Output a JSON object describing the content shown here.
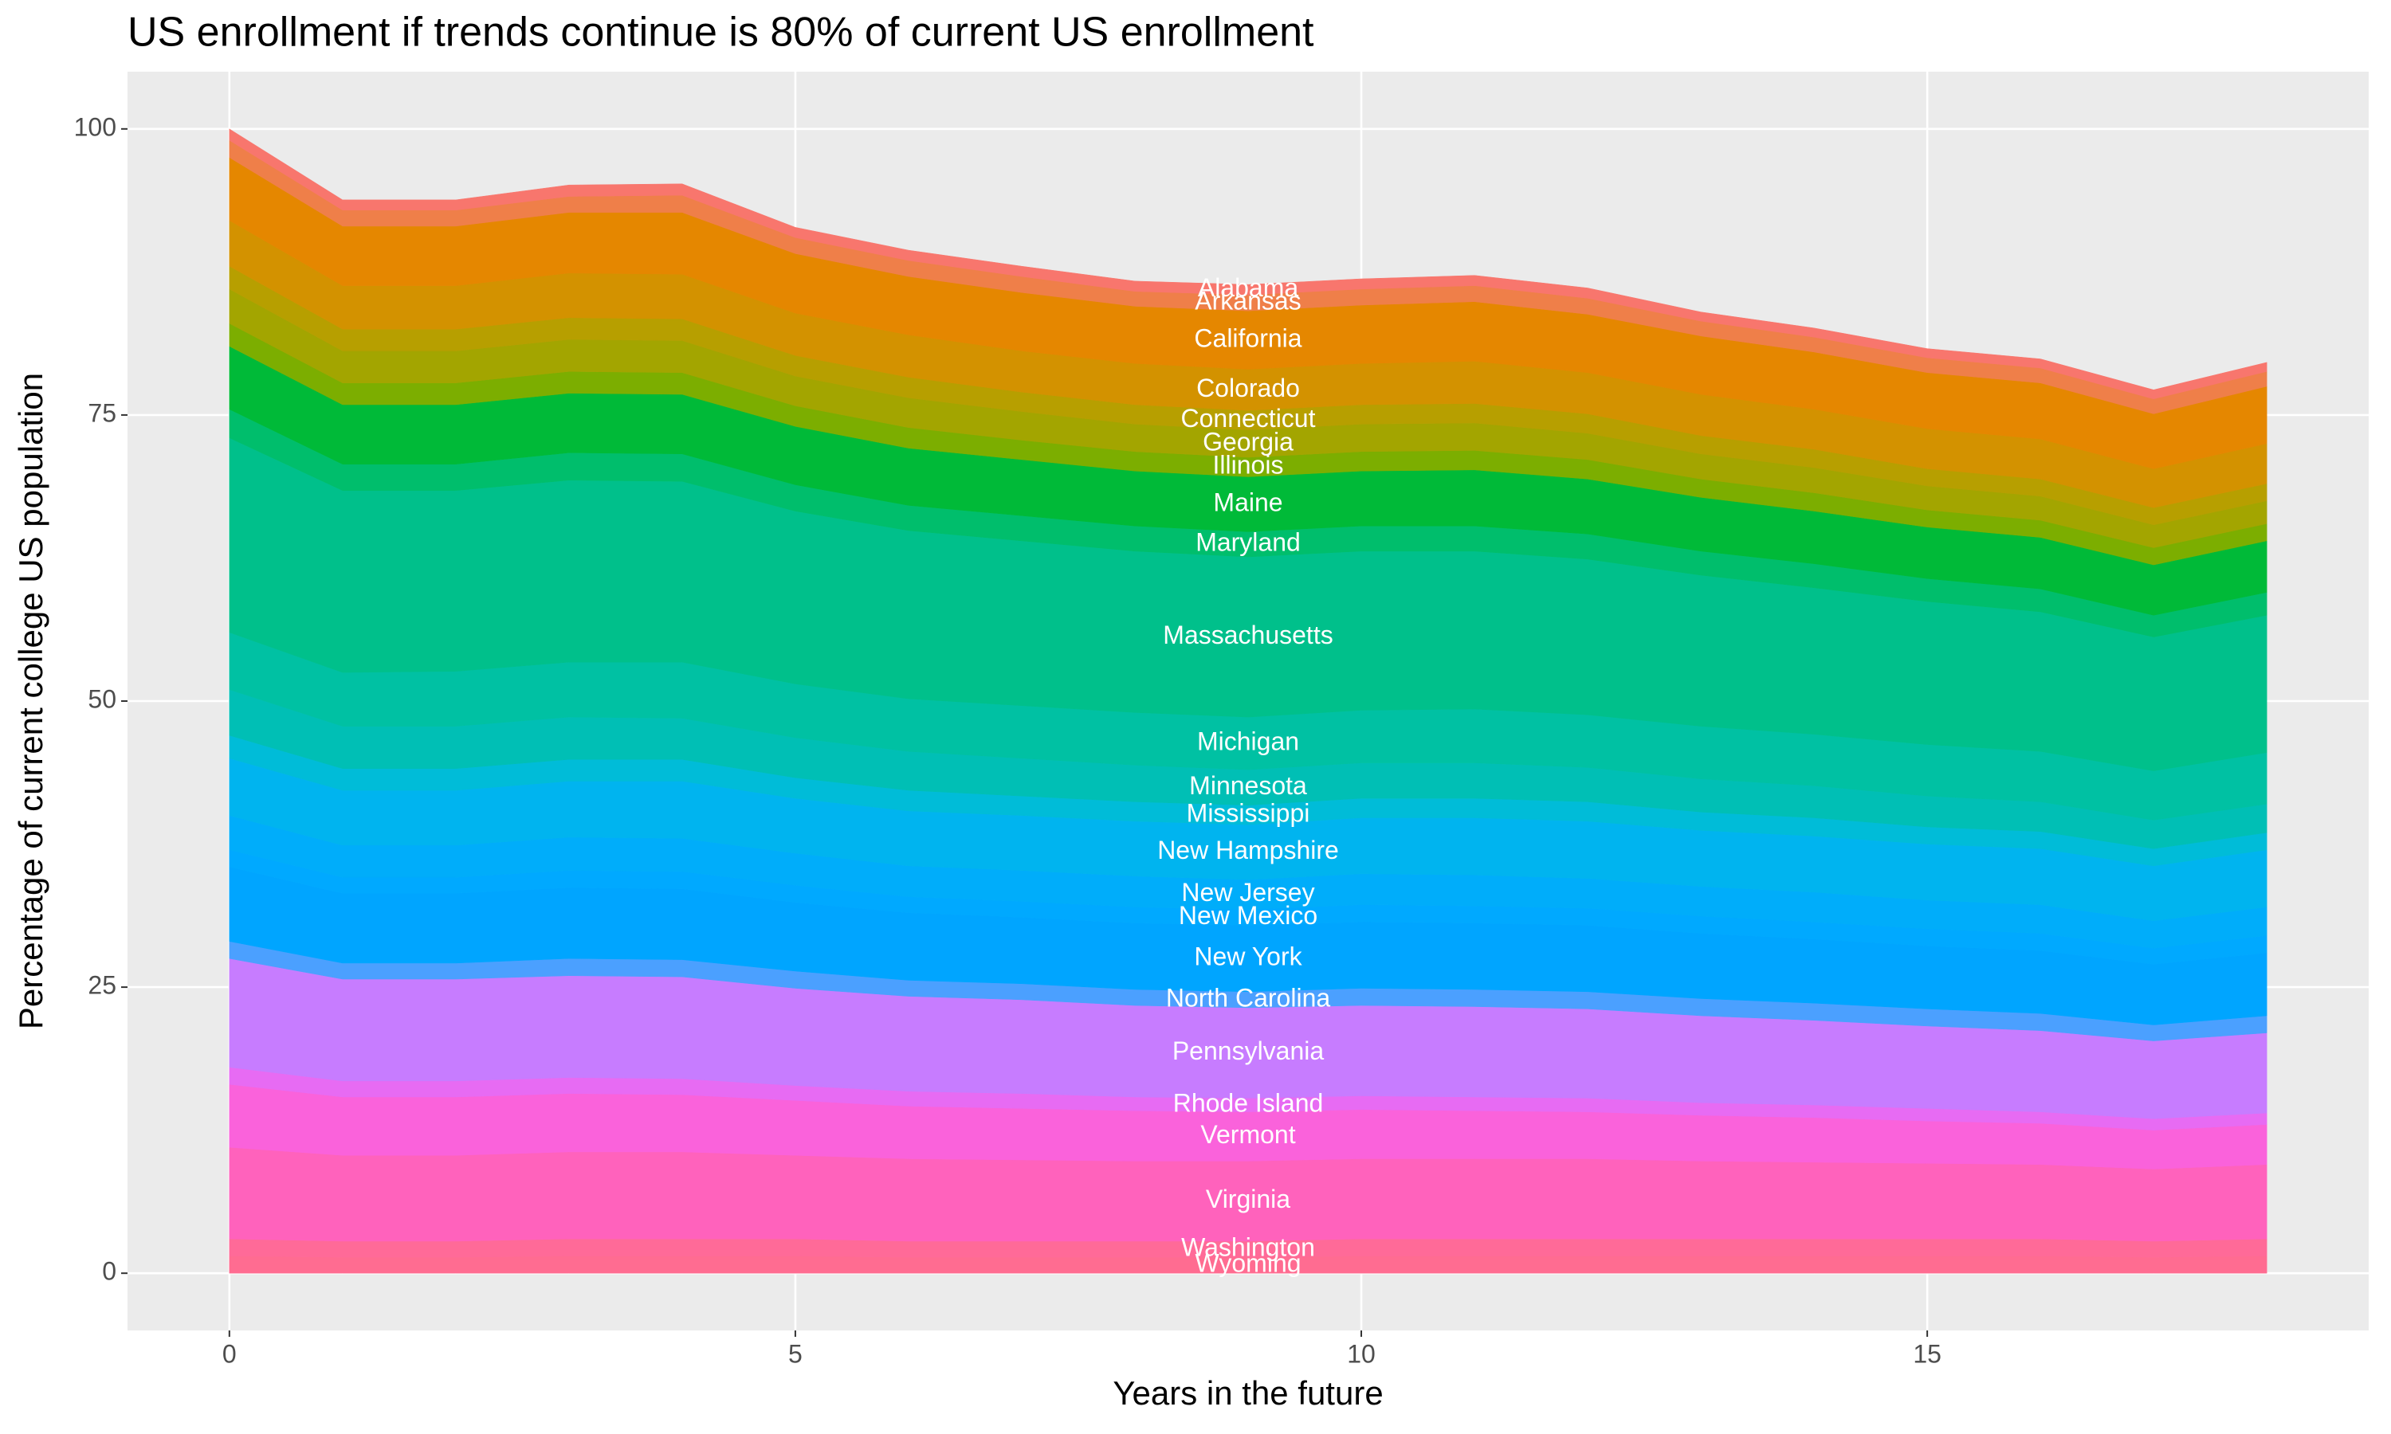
{
  "chart_data": {
    "type": "stacked-area",
    "title": "US enrollment if trends continue is 80% of current US enrollment",
    "x_label": "Years in the future",
    "y_label": "Percentage of current college US population",
    "x": [
      0,
      1,
      2,
      3,
      4,
      5,
      6,
      7,
      8,
      9,
      10,
      11,
      12,
      13,
      14,
      15,
      16,
      17,
      18
    ],
    "xlim": [
      -0.9,
      18.9
    ],
    "xticks": [
      0,
      5,
      10,
      15
    ],
    "ylim": [
      -5,
      105
    ],
    "yticks": [
      0,
      25,
      50,
      75,
      100
    ],
    "grid": true,
    "series": [
      {
        "name": "Alabama",
        "color": "#F8766D",
        "values": [
          1.0,
          0.9,
          0.9,
          1.0,
          1.0,
          0.9,
          0.9,
          0.9,
          0.9,
          0.9,
          0.9,
          0.9,
          0.9,
          0.8,
          0.8,
          0.8,
          0.8,
          0.8,
          0.8
        ]
      },
      {
        "name": "Arkansas",
        "color": "#EF7F49",
        "values": [
          1.5,
          1.4,
          1.4,
          1.4,
          1.5,
          1.4,
          1.4,
          1.4,
          1.3,
          1.4,
          1.4,
          1.4,
          1.4,
          1.3,
          1.3,
          1.3,
          1.3,
          1.3,
          1.3
        ]
      },
      {
        "name": "California",
        "color": "#E58700",
        "values": [
          5.5,
          5.2,
          5.2,
          5.3,
          5.4,
          5.2,
          5.1,
          5.1,
          5.0,
          5.1,
          5.1,
          5.2,
          5.1,
          5.1,
          5.0,
          4.9,
          4.9,
          4.8,
          5.0
        ]
      },
      {
        "name": "Colorado",
        "color": "#D39200",
        "values": [
          4.0,
          3.8,
          3.8,
          3.9,
          3.9,
          3.7,
          3.7,
          3.6,
          3.6,
          3.6,
          3.6,
          3.7,
          3.6,
          3.6,
          3.5,
          3.5,
          3.5,
          3.4,
          3.5
        ]
      },
      {
        "name": "Connecticut",
        "color": "#B79F00",
        "values": [
          2.0,
          1.9,
          1.9,
          1.9,
          1.9,
          1.8,
          1.8,
          1.7,
          1.7,
          1.7,
          1.7,
          1.7,
          1.7,
          1.6,
          1.6,
          1.5,
          1.5,
          1.5,
          1.5
        ]
      },
      {
        "name": "Georgia",
        "color": "#A3A500",
        "values": [
          3.0,
          2.8,
          2.8,
          2.8,
          2.8,
          2.6,
          2.6,
          2.5,
          2.4,
          2.4,
          2.4,
          2.4,
          2.3,
          2.2,
          2.2,
          2.1,
          2.1,
          2.0,
          2.0
        ]
      },
      {
        "name": "Illinois",
        "color": "#7CAE00",
        "values": [
          2.0,
          1.9,
          1.9,
          1.9,
          1.9,
          1.8,
          1.8,
          1.7,
          1.7,
          1.7,
          1.7,
          1.7,
          1.7,
          1.6,
          1.6,
          1.5,
          1.5,
          1.5,
          1.5
        ]
      },
      {
        "name": "Maine",
        "color": "#00BA38",
        "values": [
          5.5,
          5.2,
          5.2,
          5.2,
          5.2,
          5.1,
          5.0,
          4.9,
          4.8,
          4.8,
          4.8,
          4.9,
          4.8,
          4.7,
          4.6,
          4.5,
          4.5,
          4.4,
          4.5
        ]
      },
      {
        "name": "Maryland",
        "color": "#00BE6C",
        "values": [
          2.5,
          2.3,
          2.3,
          2.4,
          2.4,
          2.3,
          2.2,
          2.2,
          2.2,
          2.2,
          2.2,
          2.2,
          2.2,
          2.1,
          2.1,
          2.0,
          2.0,
          1.9,
          2.0
        ]
      },
      {
        "name": "Massachusetts",
        "color": "#00C08B",
        "values": [
          17.0,
          15.9,
          15.8,
          15.9,
          15.8,
          15.1,
          14.7,
          14.4,
          14.1,
          14.0,
          13.9,
          13.8,
          13.6,
          13.2,
          12.8,
          12.5,
          12.2,
          11.7,
          12.0
        ]
      },
      {
        "name": "Michigan",
        "color": "#00C1A3",
        "values": [
          5.0,
          4.7,
          4.8,
          4.8,
          4.9,
          4.7,
          4.6,
          4.6,
          4.6,
          4.6,
          4.6,
          4.7,
          4.6,
          4.6,
          4.5,
          4.5,
          4.4,
          4.3,
          4.5
        ]
      },
      {
        "name": "Minnesota",
        "color": "#00BFB5",
        "values": [
          4.0,
          3.7,
          3.7,
          3.7,
          3.6,
          3.5,
          3.4,
          3.3,
          3.2,
          3.1,
          3.1,
          3.1,
          3.0,
          2.9,
          2.8,
          2.7,
          2.6,
          2.5,
          2.5
        ]
      },
      {
        "name": "Mississippi",
        "color": "#00BCD8",
        "values": [
          2.0,
          1.9,
          1.9,
          1.9,
          1.9,
          1.8,
          1.8,
          1.7,
          1.7,
          1.7,
          1.7,
          1.7,
          1.7,
          1.6,
          1.6,
          1.5,
          1.5,
          1.5,
          1.5
        ]
      },
      {
        "name": "New Hampshire",
        "color": "#00B4EF",
        "values": [
          5.0,
          4.8,
          4.8,
          4.9,
          5.0,
          4.8,
          4.8,
          4.8,
          4.8,
          4.8,
          4.9,
          5.0,
          5.0,
          4.9,
          4.9,
          4.9,
          4.9,
          4.8,
          5.0
        ]
      },
      {
        "name": "New Jersey",
        "color": "#00ADFA",
        "values": [
          3.0,
          2.8,
          2.8,
          2.9,
          2.9,
          2.8,
          2.7,
          2.7,
          2.7,
          2.6,
          2.7,
          2.7,
          2.6,
          2.6,
          2.6,
          2.5,
          2.5,
          2.4,
          2.5
        ]
      },
      {
        "name": "New Mexico",
        "color": "#00A9FF",
        "values": [
          1.5,
          1.4,
          1.4,
          1.5,
          1.5,
          1.5,
          1.4,
          1.4,
          1.4,
          1.4,
          1.5,
          1.5,
          1.5,
          1.5,
          1.5,
          1.5,
          1.5,
          1.4,
          1.5
        ]
      },
      {
        "name": "New York",
        "color": "#00A5FF",
        "values": [
          6.5,
          6.1,
          6.1,
          6.2,
          6.2,
          6.0,
          5.9,
          5.8,
          5.8,
          5.8,
          5.8,
          5.8,
          5.8,
          5.7,
          5.6,
          5.5,
          5.5,
          5.3,
          5.5
        ]
      },
      {
        "name": "North Carolina",
        "color": "#4BA0FF",
        "values": [
          1.5,
          1.4,
          1.4,
          1.5,
          1.5,
          1.5,
          1.4,
          1.4,
          1.4,
          1.4,
          1.5,
          1.5,
          1.5,
          1.5,
          1.5,
          1.5,
          1.5,
          1.4,
          1.5
        ]
      },
      {
        "name": "Pennsylvania",
        "color": "#C77CFF",
        "values": [
          9.5,
          8.9,
          8.9,
          8.9,
          8.9,
          8.5,
          8.3,
          8.2,
          8.0,
          7.9,
          7.9,
          7.9,
          7.8,
          7.6,
          7.4,
          7.2,
          7.1,
          6.8,
          7.0
        ]
      },
      {
        "name": "Rhode Island",
        "color": "#E76BF3",
        "values": [
          1.5,
          1.4,
          1.4,
          1.4,
          1.4,
          1.3,
          1.3,
          1.3,
          1.2,
          1.2,
          1.2,
          1.2,
          1.2,
          1.1,
          1.1,
          1.1,
          1.0,
          1.0,
          1.0
        ]
      },
      {
        "name": "Vermont",
        "color": "#FA62DB",
        "values": [
          5.5,
          5.1,
          5.1,
          5.1,
          5.0,
          4.8,
          4.6,
          4.5,
          4.4,
          4.3,
          4.3,
          4.2,
          4.1,
          4.0,
          3.9,
          3.7,
          3.6,
          3.4,
          3.5
        ]
      },
      {
        "name": "Virginia",
        "color": "#FF62BC",
        "values": [
          8.0,
          7.5,
          7.5,
          7.6,
          7.6,
          7.3,
          7.2,
          7.1,
          7.0,
          7.0,
          7.0,
          7.0,
          7.0,
          6.8,
          6.7,
          6.6,
          6.5,
          6.3,
          6.5
        ]
      },
      {
        "name": "Washington",
        "color": "#FF6A98",
        "values": [
          1.5,
          1.4,
          1.4,
          1.5,
          1.5,
          1.5,
          1.4,
          1.4,
          1.4,
          1.4,
          1.5,
          1.5,
          1.5,
          1.5,
          1.5,
          1.5,
          1.5,
          1.4,
          1.5
        ]
      },
      {
        "name": "Wyoming",
        "color": "#FF6C91",
        "values": [
          1.5,
          1.4,
          1.4,
          1.5,
          1.5,
          1.5,
          1.4,
          1.4,
          1.4,
          1.4,
          1.5,
          1.5,
          1.5,
          1.5,
          1.5,
          1.5,
          1.5,
          1.4,
          1.5
        ]
      }
    ]
  }
}
